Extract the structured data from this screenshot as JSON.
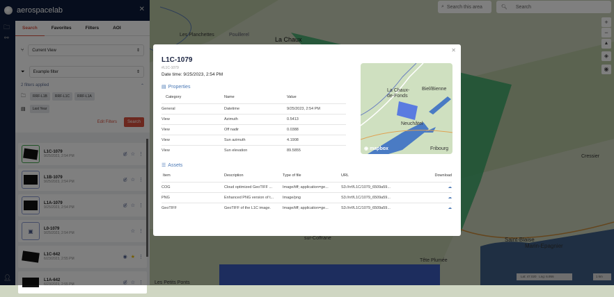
{
  "app": {
    "brand": "aerospacelab"
  },
  "sidebar": {
    "tabs": [
      {
        "label": "Search",
        "active": true
      },
      {
        "label": "Favorites"
      },
      {
        "label": "Filters"
      },
      {
        "label": "AOI"
      }
    ],
    "view_select": "Current View",
    "filter_select": "Example filter",
    "filters_applied": "2 filters applied",
    "chips": [
      "RRF-L1B",
      "RRF-L1C",
      "RRF-L1A"
    ],
    "date_chip": "Last Year",
    "edit_filters": "Edit Filters",
    "search": "Search",
    "items": [
      {
        "title": "L1C-1079",
        "date": "9/25/2023, 2:54 PM",
        "visible": false,
        "favorite": false
      },
      {
        "title": "L1B-1079",
        "date": "9/25/2023, 2:54 PM",
        "visible": false,
        "favorite": false
      },
      {
        "title": "L1A-1079",
        "date": "9/25/2023, 2:54 PM",
        "visible": false,
        "favorite": false
      },
      {
        "title": "L0-1079",
        "date": "9/25/2023, 2:54 PM",
        "favorite": false
      },
      {
        "title": "L1C-642",
        "date": "6/23/2023, 2:55 PM",
        "visible": true,
        "favorite": true
      },
      {
        "title": "L1A-642",
        "date": "6/23/2023, 2:55 PM",
        "visible": false,
        "favorite": false
      }
    ]
  },
  "map": {
    "search_area": "Search this area",
    "search_placeholder": "Search",
    "labels": [
      "Les Planchettes",
      "Pouillerel",
      "La Chaux",
      "sur-Coffrane",
      "Tête Plumée",
      "Les Petits Ponts",
      "Cressier",
      "Saint-Blaise",
      "Marin-Epagnier"
    ],
    "lat": "Lat: 47.020",
    "lng": "Lng: 6.956",
    "scale": "1 km",
    "colors": {
      "footprint": "#3aa868",
      "selection": "#3b5bbd",
      "lake": "#3e5f86"
    }
  },
  "modal": {
    "title": "L1C-1079",
    "id": "#L1C-1079",
    "datetime": "Date time: 9/25/2023, 2:54 PM",
    "properties_label": "Properties",
    "prop_headers": [
      "Category",
      "Name",
      "Value"
    ],
    "props": [
      [
        "General",
        "Datetime",
        "9/25/2023, 2:54 PM"
      ],
      [
        "View",
        "Azimuth",
        "0.5413"
      ],
      [
        "View",
        "Off nadir",
        "0.0388"
      ],
      [
        "View",
        "Sun azimuth",
        "4.1908"
      ],
      [
        "View",
        "Sun elevation",
        "89.5855"
      ]
    ],
    "assets_label": "Assets",
    "asset_headers": [
      "Item",
      "Description",
      "Type of file",
      "URL",
      "Download"
    ],
    "assets": [
      [
        "COG",
        "Cloud optimized GeoTIFF ...",
        "Image/tiff; application=ge...",
        "S3://rrf/L1C/1079_6509a59..."
      ],
      [
        "PNG",
        "Enhanced PNG version of t...",
        "Image/png",
        "S3://rrf/L1C/1079_6509a59..."
      ],
      [
        "GeoTIFF",
        "GeoTIFF of the L1C image.",
        "Image/tiff; application=ge...",
        "S3://rrf/L1C/1079_6509a59..."
      ]
    ],
    "mini_labels": [
      "La Chaux-de-Fonds",
      "Biel/Bienne",
      "Neuchâtel",
      "Fribourg",
      "mapbox"
    ]
  }
}
